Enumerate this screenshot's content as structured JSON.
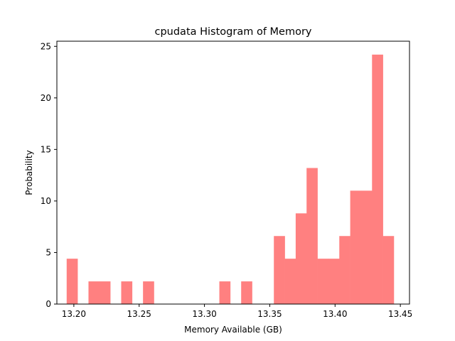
{
  "chart_data": {
    "type": "bar",
    "title": "cpudata Histogram of Memory",
    "xlabel": "Memory Available (GB)",
    "ylabel": "Probability",
    "xlim": [
      13.187,
      13.457
    ],
    "ylim": [
      0,
      25.5
    ],
    "xticks": [
      13.2,
      13.25,
      13.3,
      13.35,
      13.4,
      13.45
    ],
    "xtick_labels": [
      "13.20",
      "13.25",
      "13.30",
      "13.35",
      "13.40",
      "13.45"
    ],
    "yticks": [
      0,
      5,
      10,
      15,
      20,
      25
    ],
    "ytick_labels": [
      "0",
      "5",
      "10",
      "15",
      "20",
      "25"
    ],
    "bar_color": "#ff8080",
    "bin_width": 0.00835,
    "bins_start": 13.1945,
    "values": [
      4.4,
      0,
      2.2,
      2.2,
      0,
      2.2,
      0,
      2.2,
      0,
      0,
      0,
      0,
      0,
      0,
      2.2,
      0,
      2.2,
      0,
      0,
      6.6,
      4.4,
      8.8,
      13.2,
      4.4,
      4.4,
      6.6,
      11.0,
      11.0,
      24.2,
      6.6
    ],
    "grid": false,
    "legend": "none"
  }
}
